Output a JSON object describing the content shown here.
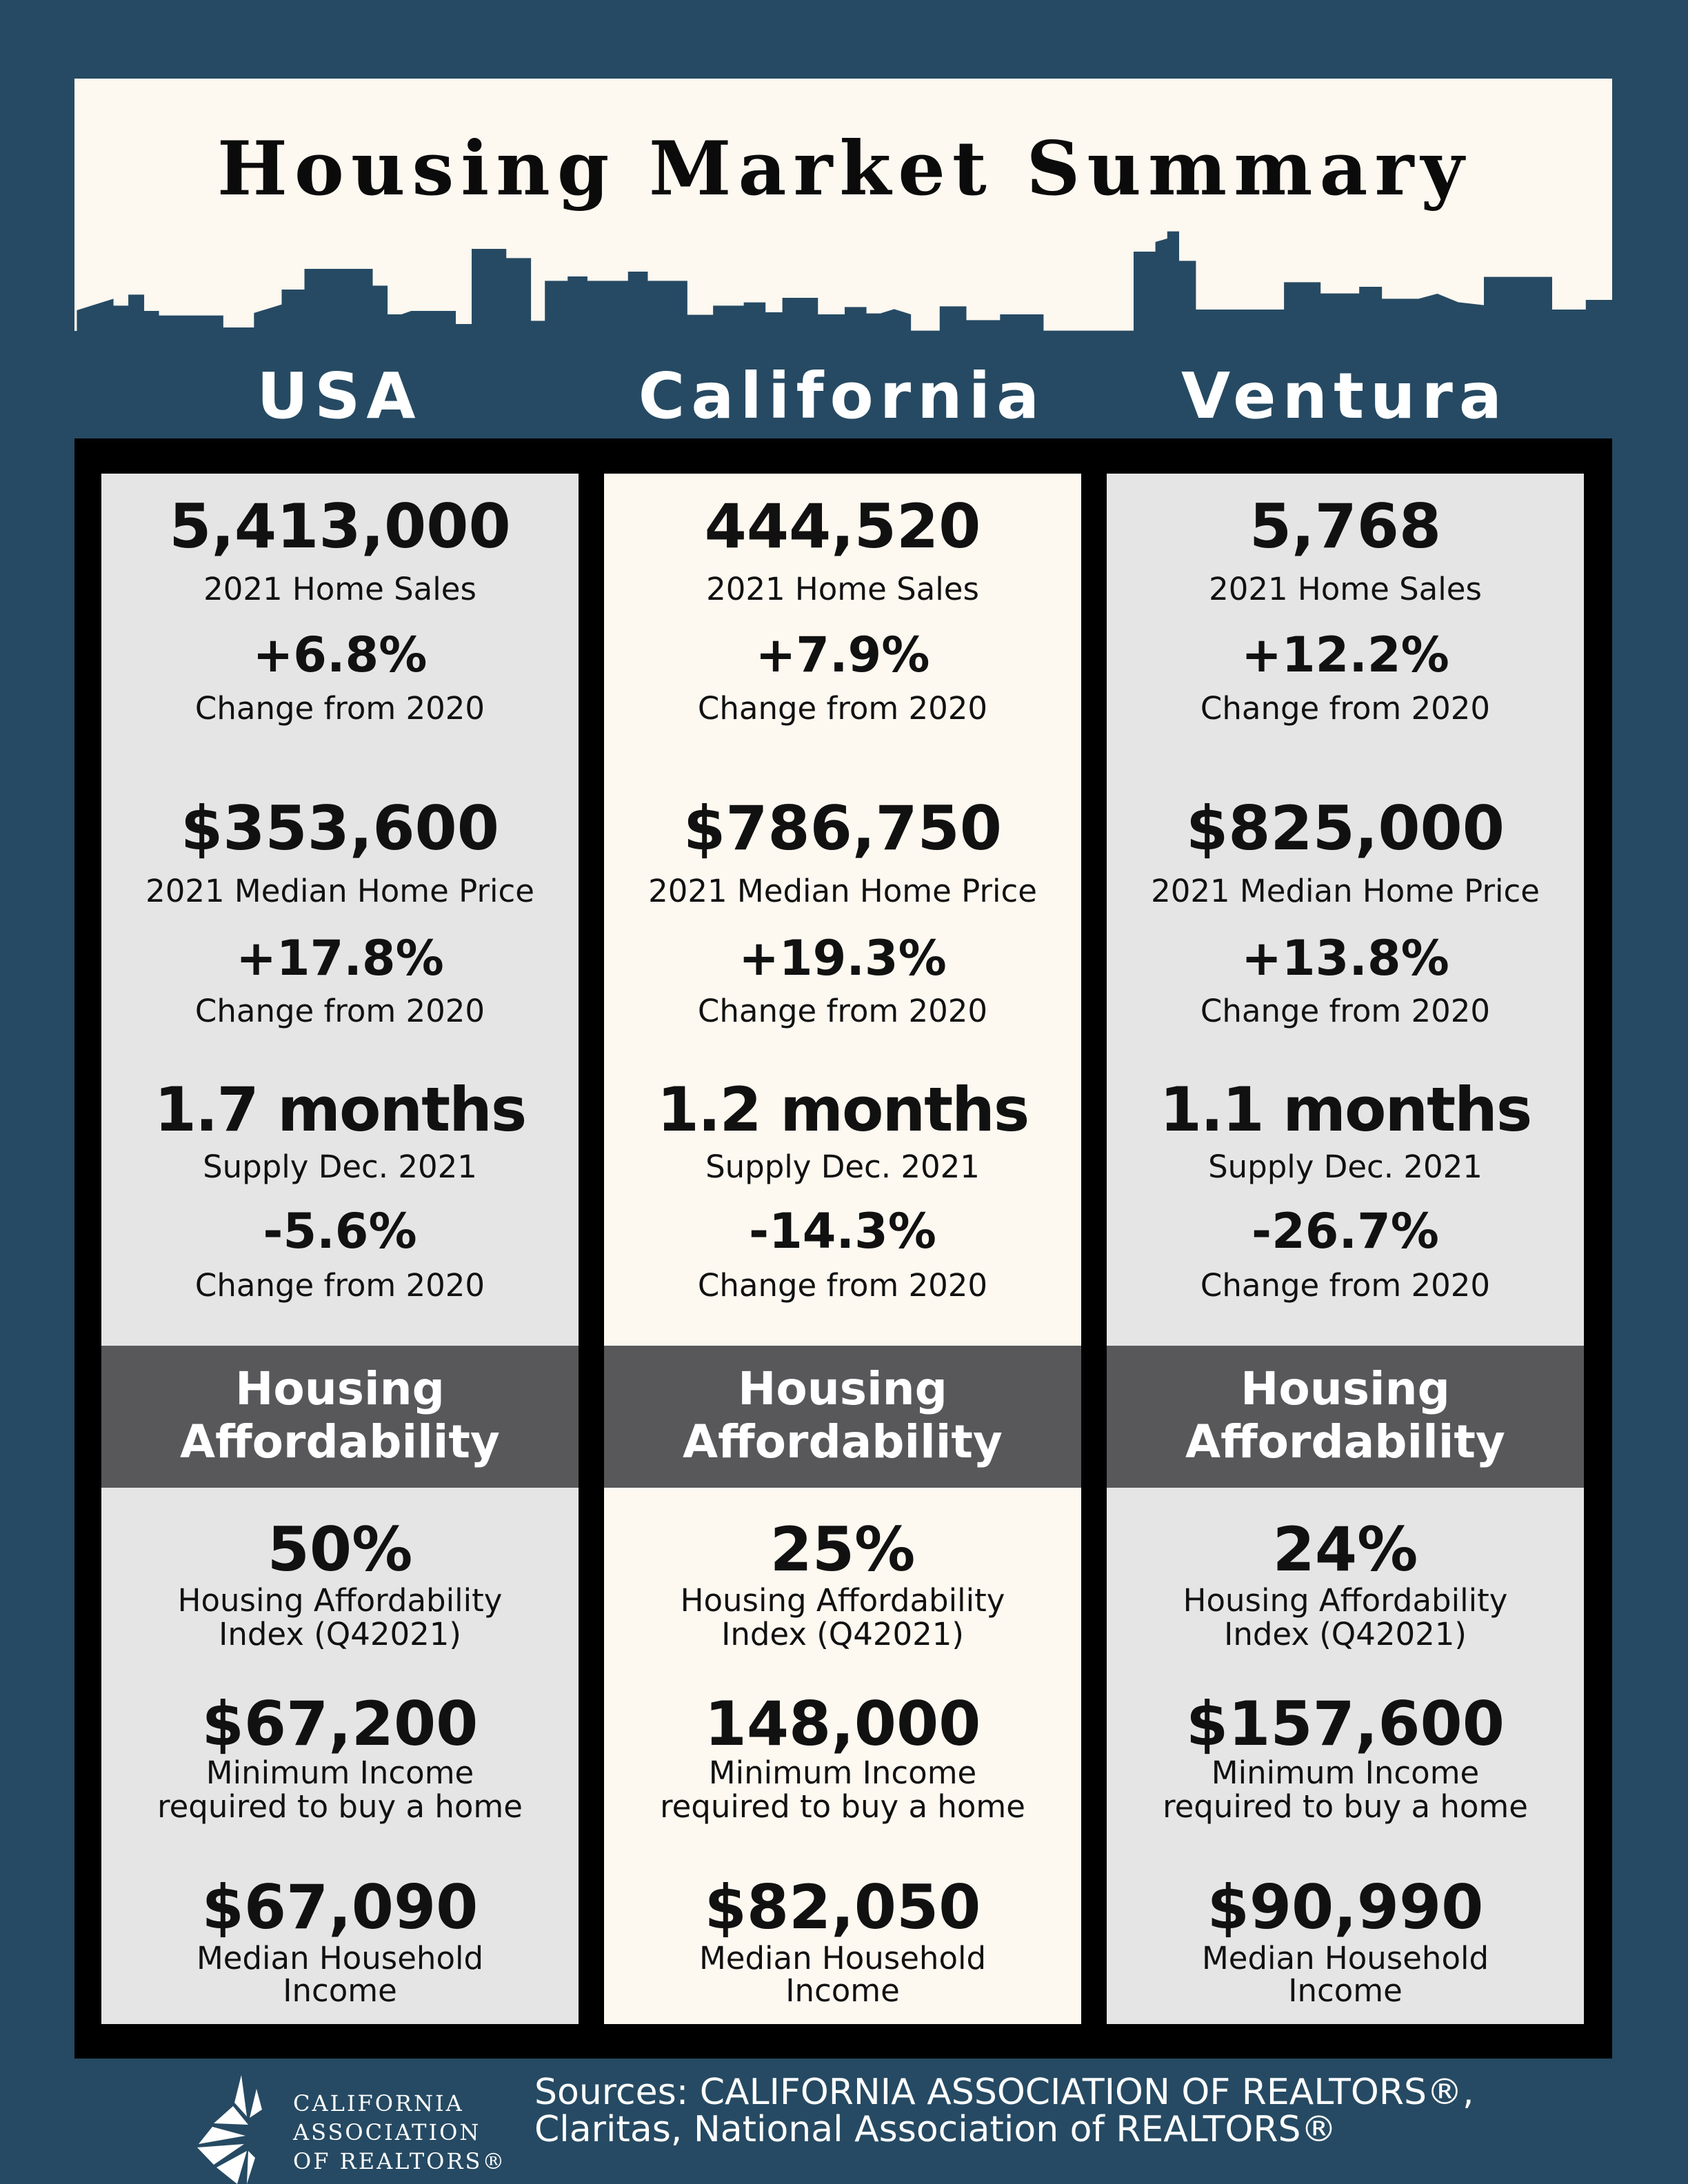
{
  "title": "Housing Market Summary",
  "regions": [
    {
      "name": "USA",
      "home_sales": "5,413,000",
      "home_sales_label": "2021 Home Sales",
      "home_sales_change": "+6.8%",
      "change_label": "Change from 2020",
      "median_price": "$353,600",
      "median_price_label": "2021 Median Home Price",
      "median_price_change": "+17.8%",
      "supply": "1.7 months",
      "supply_label": "Supply Dec. 2021",
      "supply_change": "-5.6%",
      "affordability_header_1": "Housing",
      "affordability_header_2": "Affordability",
      "hai": "50%",
      "hai_label_1": "Housing Affordability",
      "hai_label_2": "Index (Q42021)",
      "min_income": "$67,200",
      "min_income_label_1": "Minimum Income",
      "min_income_label_2": "required to buy a home",
      "median_income": "$67,090",
      "median_income_label_1": "Median Household",
      "median_income_label_2": "Income"
    },
    {
      "name": "California",
      "home_sales": "444,520",
      "home_sales_label": "2021 Home Sales",
      "home_sales_change": "+7.9%",
      "change_label": "Change from 2020",
      "median_price": "$786,750",
      "median_price_label": "2021 Median Home Price",
      "median_price_change": "+19.3%",
      "supply": "1.2 months",
      "supply_label": "Supply Dec. 2021",
      "supply_change": "-14.3%",
      "affordability_header_1": "Housing",
      "affordability_header_2": "Affordability",
      "hai": "25%",
      "hai_label_1": "Housing Affordability",
      "hai_label_2": "Index (Q42021)",
      "min_income": "148,000",
      "min_income_label_1": "Minimum Income",
      "min_income_label_2": "required to buy a home",
      "median_income": "$82,050",
      "median_income_label_1": "Median Household",
      "median_income_label_2": "Income"
    },
    {
      "name": "Ventura",
      "home_sales": "5,768",
      "home_sales_label": "2021 Home Sales",
      "home_sales_change": "+12.2%",
      "change_label": "Change from 2020",
      "median_price": "$825,000",
      "median_price_label": "2021 Median Home Price",
      "median_price_change": "+13.8%",
      "supply": "1.1 months",
      "supply_label": "Supply Dec. 2021",
      "supply_change": "-26.7%",
      "affordability_header_1": "Housing",
      "affordability_header_2": "Affordability",
      "hai": "24%",
      "hai_label_1": "Housing Affordability",
      "hai_label_2": "Index (Q42021)",
      "min_income": "$157,600",
      "min_income_label_1": "Minimum Income",
      "min_income_label_2": "required to buy a home",
      "median_income": "$90,990",
      "median_income_label_1": "Median Household",
      "median_income_label_2": "Income"
    }
  ],
  "footer": {
    "logo_lines": [
      "CALIFORNIA",
      "ASSOCIATION",
      "OF REALTORS®"
    ],
    "sources_1": "Sources: CALIFORNIA ASSOCIATION OF REALTORS®,",
    "sources_2": "Claritas, National Association of REALTORS®"
  },
  "colors": {
    "background": "#264a63",
    "cream": "#fdf8f0",
    "grey": "#e5e5e5",
    "band": "#58585b",
    "positive": "#1b6b4c",
    "negative": "#e0553f"
  }
}
